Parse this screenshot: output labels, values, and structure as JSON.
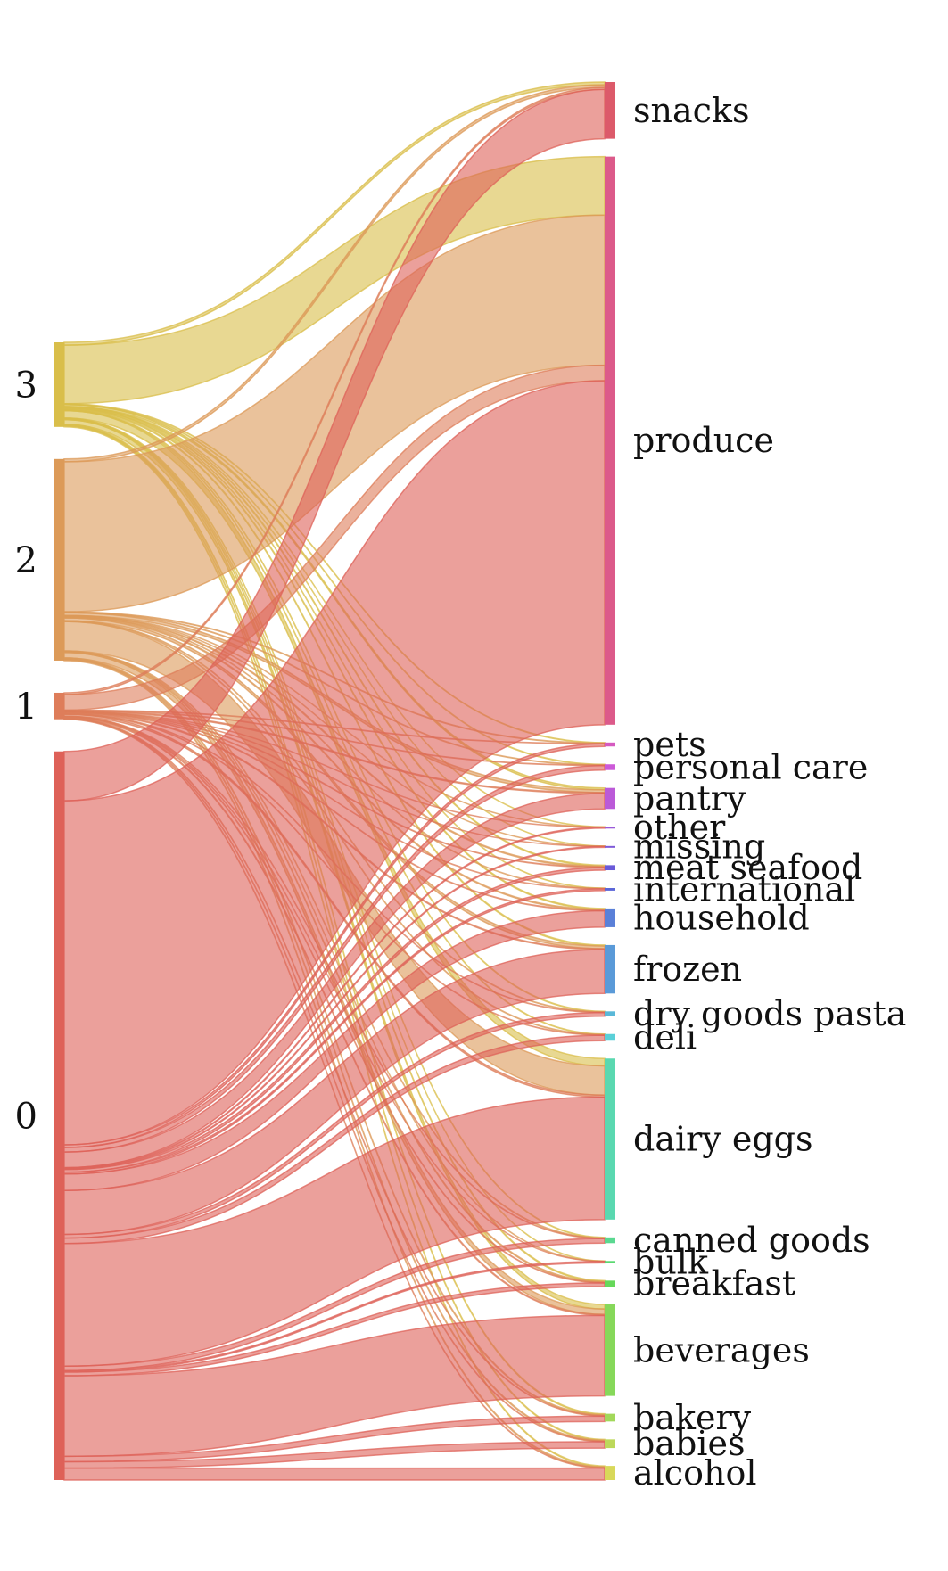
{
  "chart_data": {
    "type": "sankey",
    "title": "",
    "sources": [
      {
        "label": "3",
        "color": "#d9be4a"
      },
      {
        "label": "2",
        "color": "#dc9a58"
      },
      {
        "label": "1",
        "color": "#de7d5a"
      },
      {
        "label": "0",
        "color": "#de6158"
      }
    ],
    "targets": [
      {
        "label": "snacks",
        "color": "#dc5a6a"
      },
      {
        "label": "produce",
        "color": "#dc5a8a"
      },
      {
        "label": "pets",
        "color": "#d55ac0"
      },
      {
        "label": "personal care",
        "color": "#cc5ad8"
      },
      {
        "label": "pantry",
        "color": "#bb5ad8"
      },
      {
        "label": "other",
        "color": "#9a5ad8"
      },
      {
        "label": "missing",
        "color": "#7e5ad8"
      },
      {
        "label": "meat seafood",
        "color": "#6a5ad8"
      },
      {
        "label": "international",
        "color": "#5a65d8"
      },
      {
        "label": "household",
        "color": "#5a80d8"
      },
      {
        "label": "frozen",
        "color": "#5a9ad8"
      },
      {
        "label": "dry goods pasta",
        "color": "#5ab8d8"
      },
      {
        "label": "deli",
        "color": "#5ad0d8"
      },
      {
        "label": "dairy eggs",
        "color": "#5ad8b0"
      },
      {
        "label": "canned goods",
        "color": "#5ad890"
      },
      {
        "label": "bulk",
        "color": "#5ad870"
      },
      {
        "label": "breakfast",
        "color": "#66d85a"
      },
      {
        "label": "beverages",
        "color": "#86d85a"
      },
      {
        "label": "bakery",
        "color": "#a2d85a"
      },
      {
        "label": "babies",
        "color": "#bcd85a"
      },
      {
        "label": "alcohol",
        "color": "#d8d85a"
      }
    ],
    "flows": [
      {
        "source": "3",
        "values": [
          3,
          64,
          0.5,
          0.5,
          2,
          0.2,
          0.2,
          1,
          0.3,
          1,
          1,
          0.5,
          0.5,
          8,
          0.5,
          0.2,
          1,
          5,
          1,
          1,
          1
        ]
      },
      {
        "source": "2",
        "values": [
          3,
          164,
          0.5,
          0.5,
          3,
          0.2,
          0.2,
          1,
          0.3,
          1,
          3,
          0.5,
          0.5,
          32,
          0.5,
          0.2,
          1,
          6,
          1,
          1,
          1
        ]
      },
      {
        "source": "1",
        "values": [
          2,
          17,
          0.3,
          0.3,
          1,
          0.1,
          0.1,
          0.5,
          0.2,
          0.5,
          1,
          0.3,
          0.3,
          2,
          0.3,
          0.1,
          0.5,
          1,
          0.5,
          0.5,
          0.5
        ]
      },
      {
        "source": "0",
        "values": [
          54,
          376,
          3,
          5,
          17,
          1,
          1,
          3,
          2,
          18,
          48,
          4,
          6,
          134,
          5,
          1.5,
          4,
          88,
          6,
          7,
          13
        ]
      }
    ],
    "legend": "none",
    "grid": false
  }
}
